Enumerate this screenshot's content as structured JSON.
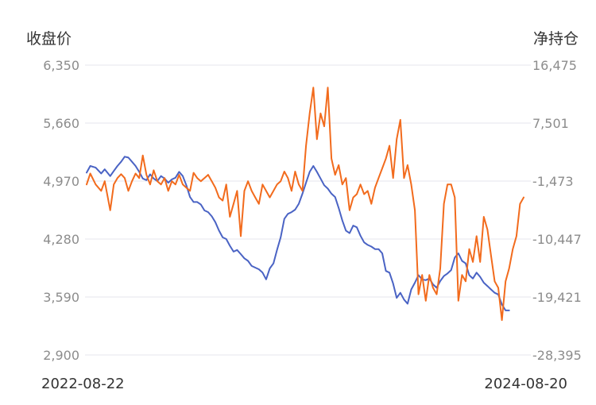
{
  "chart_data": {
    "type": "line",
    "y_left_label": "收盘价",
    "y_right_label": "净持仓",
    "x_start_label": "2022-08-22",
    "x_end_label": "2024-08-20",
    "left_ticks": [
      "6,350",
      "5,660",
      "4,970",
      "4,280",
      "3,590",
      "2,900"
    ],
    "right_ticks": [
      "16,475",
      "7,501",
      "-1,473",
      "-10,447",
      "-19,421",
      "-28,395"
    ],
    "left_range": [
      2900,
      6350
    ],
    "right_range": [
      -28395,
      16475
    ],
    "grid": true,
    "series": [
      {
        "axis": "left",
        "color": "#4a63c4",
        "points": [
          [
            0,
            5070
          ],
          [
            2,
            5150
          ],
          [
            5,
            5130
          ],
          [
            8,
            5060
          ],
          [
            10,
            5110
          ],
          [
            13,
            5030
          ],
          [
            15,
            5090
          ],
          [
            17,
            5150
          ],
          [
            19,
            5200
          ],
          [
            21,
            5260
          ],
          [
            23,
            5250
          ],
          [
            25,
            5200
          ],
          [
            27,
            5150
          ],
          [
            29,
            5080
          ],
          [
            31,
            5000
          ],
          [
            33,
            4980
          ],
          [
            35,
            5050
          ],
          [
            37,
            5000
          ],
          [
            39,
            4970
          ],
          [
            41,
            5030
          ],
          [
            43,
            5000
          ],
          [
            45,
            4950
          ],
          [
            47,
            4990
          ],
          [
            49,
            5010
          ],
          [
            51,
            5080
          ],
          [
            53,
            5030
          ],
          [
            55,
            4920
          ],
          [
            57,
            4780
          ],
          [
            59,
            4720
          ],
          [
            61,
            4720
          ],
          [
            63,
            4690
          ],
          [
            65,
            4620
          ],
          [
            67,
            4600
          ],
          [
            69,
            4550
          ],
          [
            71,
            4480
          ],
          [
            73,
            4380
          ],
          [
            75,
            4300
          ],
          [
            77,
            4280
          ],
          [
            79,
            4200
          ],
          [
            81,
            4130
          ],
          [
            83,
            4150
          ],
          [
            85,
            4100
          ],
          [
            87,
            4050
          ],
          [
            89,
            4020
          ],
          [
            91,
            3960
          ],
          [
            93,
            3940
          ],
          [
            95,
            3920
          ],
          [
            97,
            3880
          ],
          [
            99,
            3800
          ],
          [
            101,
            3930
          ],
          [
            103,
            3990
          ],
          [
            105,
            4150
          ],
          [
            107,
            4300
          ],
          [
            109,
            4520
          ],
          [
            111,
            4580
          ],
          [
            113,
            4600
          ],
          [
            115,
            4630
          ],
          [
            117,
            4700
          ],
          [
            119,
            4820
          ],
          [
            121,
            4950
          ],
          [
            123,
            5080
          ],
          [
            125,
            5150
          ],
          [
            127,
            5080
          ],
          [
            129,
            5000
          ],
          [
            131,
            4920
          ],
          [
            133,
            4880
          ],
          [
            135,
            4820
          ],
          [
            137,
            4780
          ],
          [
            139,
            4650
          ],
          [
            141,
            4500
          ],
          [
            143,
            4380
          ],
          [
            145,
            4350
          ],
          [
            147,
            4440
          ],
          [
            149,
            4420
          ],
          [
            151,
            4320
          ],
          [
            153,
            4240
          ],
          [
            155,
            4210
          ],
          [
            157,
            4190
          ],
          [
            159,
            4160
          ],
          [
            161,
            4160
          ],
          [
            163,
            4110
          ],
          [
            165,
            3900
          ],
          [
            167,
            3880
          ],
          [
            169,
            3750
          ],
          [
            171,
            3580
          ],
          [
            173,
            3640
          ],
          [
            175,
            3560
          ],
          [
            177,
            3510
          ],
          [
            179,
            3680
          ],
          [
            181,
            3760
          ],
          [
            183,
            3850
          ],
          [
            185,
            3800
          ],
          [
            187,
            3790
          ],
          [
            189,
            3810
          ],
          [
            191,
            3740
          ],
          [
            193,
            3700
          ],
          [
            195,
            3780
          ],
          [
            197,
            3840
          ],
          [
            199,
            3870
          ],
          [
            201,
            3910
          ],
          [
            203,
            4060
          ],
          [
            205,
            4110
          ],
          [
            207,
            4020
          ],
          [
            209,
            3990
          ],
          [
            211,
            3850
          ],
          [
            213,
            3810
          ],
          [
            215,
            3880
          ],
          [
            217,
            3830
          ],
          [
            219,
            3760
          ],
          [
            221,
            3720
          ],
          [
            223,
            3680
          ],
          [
            225,
            3640
          ],
          [
            227,
            3620
          ],
          [
            229,
            3500
          ],
          [
            231,
            3430
          ],
          [
            233,
            3430
          ]
        ]
      },
      {
        "axis": "right",
        "color": "#f26b1d",
        "points": [
          [
            0,
            -2000
          ],
          [
            2,
            -300
          ],
          [
            5,
            -2000
          ],
          [
            8,
            -3000
          ],
          [
            10,
            -1500
          ],
          [
            13,
            -6000
          ],
          [
            15,
            -2000
          ],
          [
            17,
            -1000
          ],
          [
            19,
            -400
          ],
          [
            21,
            -1000
          ],
          [
            23,
            -3000
          ],
          [
            25,
            -1500
          ],
          [
            27,
            -300
          ],
          [
            29,
            -1000
          ],
          [
            31,
            2500
          ],
          [
            33,
            -500
          ],
          [
            35,
            -2000
          ],
          [
            37,
            200
          ],
          [
            39,
            -1500
          ],
          [
            41,
            -2000
          ],
          [
            43,
            -1000
          ],
          [
            45,
            -3000
          ],
          [
            47,
            -1500
          ],
          [
            49,
            -2000
          ],
          [
            51,
            -500
          ],
          [
            53,
            -2000
          ],
          [
            55,
            -2500
          ],
          [
            57,
            -3000
          ],
          [
            59,
            -200
          ],
          [
            61,
            -1000
          ],
          [
            63,
            -1500
          ],
          [
            65,
            -1000
          ],
          [
            67,
            -500
          ],
          [
            69,
            -1500
          ],
          [
            71,
            -2500
          ],
          [
            73,
            -4000
          ],
          [
            75,
            -4500
          ],
          [
            77,
            -2000
          ],
          [
            79,
            -7000
          ],
          [
            81,
            -5000
          ],
          [
            83,
            -3000
          ],
          [
            85,
            -10000
          ],
          [
            87,
            -3000
          ],
          [
            89,
            -1500
          ],
          [
            91,
            -3000
          ],
          [
            93,
            -4000
          ],
          [
            95,
            -5000
          ],
          [
            97,
            -2000
          ],
          [
            99,
            -3000
          ],
          [
            101,
            -4000
          ],
          [
            103,
            -3000
          ],
          [
            105,
            -2000
          ],
          [
            107,
            -1500
          ],
          [
            109,
            0
          ],
          [
            111,
            -1000
          ],
          [
            113,
            -3000
          ],
          [
            115,
            0
          ],
          [
            117,
            -2000
          ],
          [
            119,
            -3000
          ],
          [
            121,
            4000
          ],
          [
            123,
            9000
          ],
          [
            125,
            13000
          ],
          [
            127,
            5000
          ],
          [
            129,
            9000
          ],
          [
            131,
            7000
          ],
          [
            133,
            13000
          ],
          [
            135,
            2000
          ],
          [
            137,
            -500
          ],
          [
            139,
            1000
          ],
          [
            141,
            -2000
          ],
          [
            143,
            -1000
          ],
          [
            145,
            -6000
          ],
          [
            147,
            -4000
          ],
          [
            149,
            -3500
          ],
          [
            151,
            -2000
          ],
          [
            153,
            -3500
          ],
          [
            155,
            -3000
          ],
          [
            157,
            -5000
          ],
          [
            159,
            -2500
          ],
          [
            161,
            -1000
          ],
          [
            163,
            500
          ],
          [
            165,
            2000
          ],
          [
            167,
            4000
          ],
          [
            169,
            -1000
          ],
          [
            171,
            5000
          ],
          [
            173,
            8000
          ],
          [
            175,
            -1000
          ],
          [
            177,
            1000
          ],
          [
            179,
            -2000
          ],
          [
            181,
            -6000
          ],
          [
            183,
            -19000
          ],
          [
            185,
            -16000
          ],
          [
            187,
            -20000
          ],
          [
            189,
            -16000
          ],
          [
            191,
            -18000
          ],
          [
            193,
            -19000
          ],
          [
            195,
            -15000
          ],
          [
            197,
            -5000
          ],
          [
            199,
            -2000
          ],
          [
            201,
            -2000
          ],
          [
            203,
            -4000
          ],
          [
            205,
            -20000
          ],
          [
            207,
            -16000
          ],
          [
            209,
            -17000
          ],
          [
            211,
            -12000
          ],
          [
            213,
            -14000
          ],
          [
            215,
            -10000
          ],
          [
            217,
            -14000
          ],
          [
            219,
            -7000
          ],
          [
            221,
            -9000
          ],
          [
            223,
            -13000
          ],
          [
            225,
            -17000
          ],
          [
            227,
            -18000
          ],
          [
            229,
            -23000
          ],
          [
            231,
            -17000
          ],
          [
            233,
            -15000
          ],
          [
            235,
            -12000
          ],
          [
            237,
            -10000
          ],
          [
            239,
            -5000
          ],
          [
            241,
            -4000
          ]
        ]
      }
    ]
  }
}
